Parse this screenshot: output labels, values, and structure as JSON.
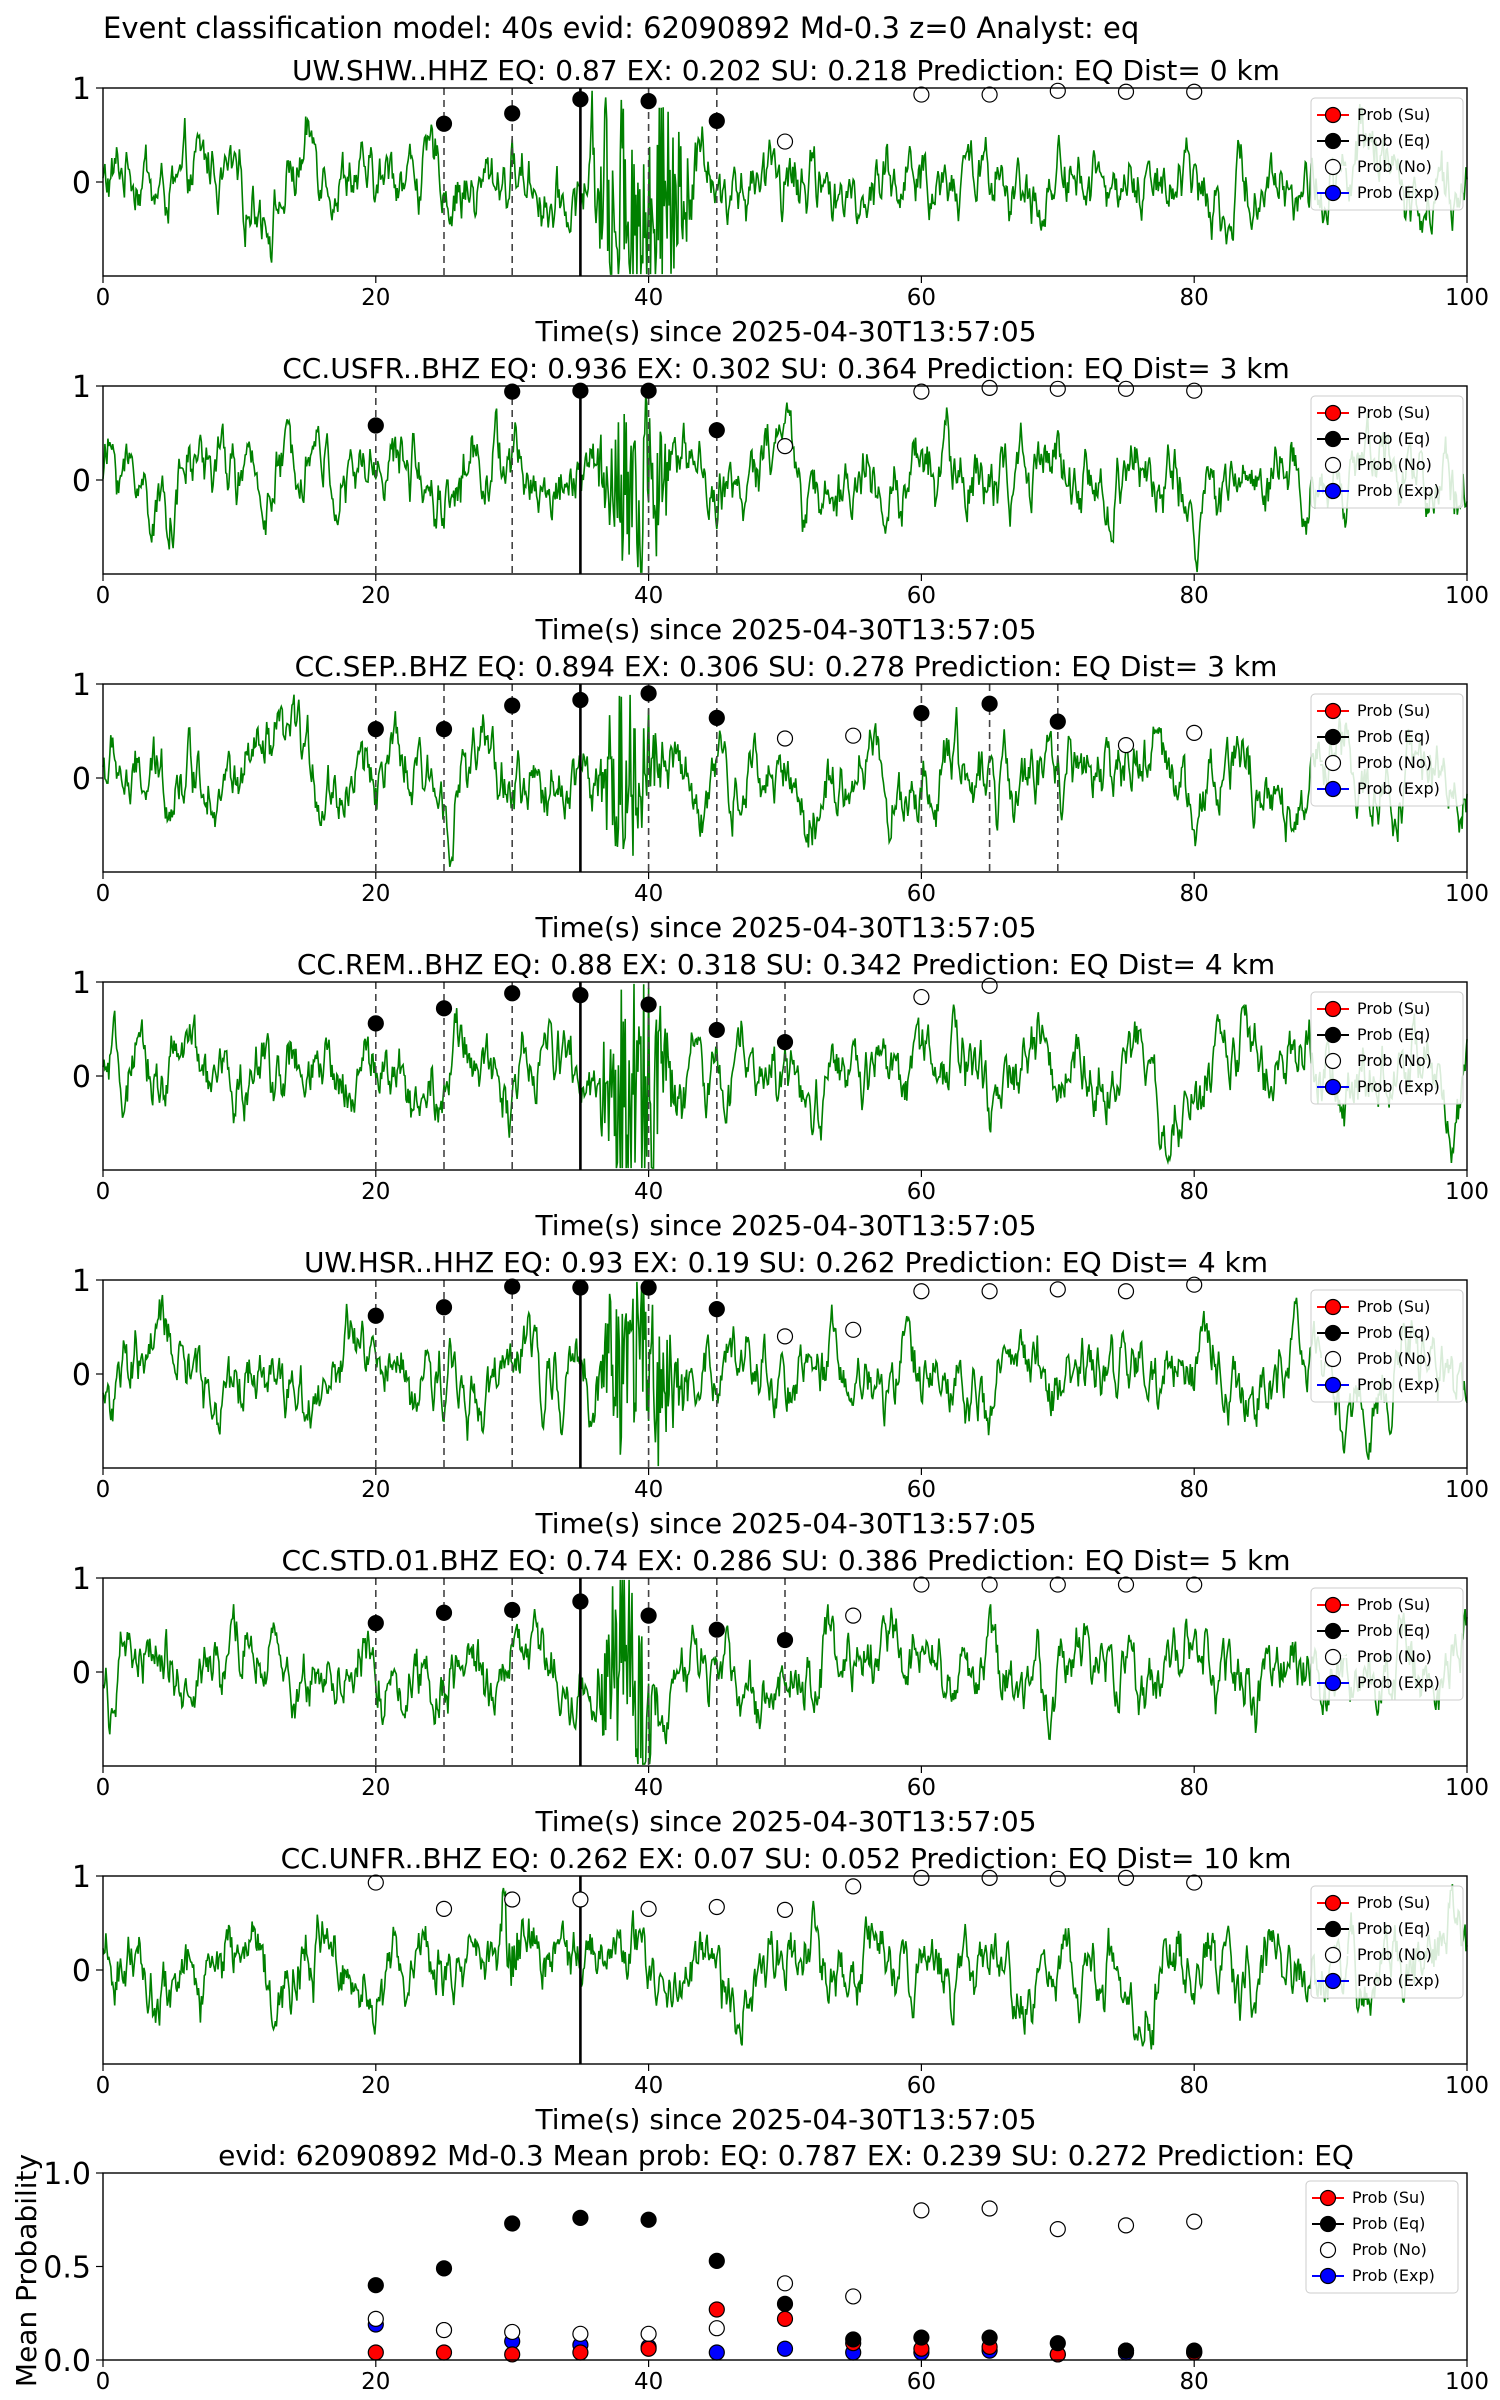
{
  "figure": {
    "suptitle": "Event classification model: 40s evid: 62090892 Md-0.3 z=0 Analyst: eq",
    "xlabel": "Time(s) since 2025-04-30T13:57:05",
    "legend": [
      "Prob (Su)",
      "Prob (Eq)",
      "Prob (No)",
      "Prob (Exp)"
    ]
  },
  "colors": {
    "waveform": "#008000",
    "su": "#ff0000",
    "eq": "#000000",
    "no": "#ffffff",
    "exp": "#0000ff"
  },
  "chart_data": [
    {
      "type": "line",
      "title": "UW.SHW..HHZ   EQ: 0.87  EX: 0.202  SU: 0.218   Prediction: EQ    Dist= 0 km",
      "xlim": [
        0,
        100
      ],
      "ylim": [
        -1,
        1
      ],
      "xticks": [
        "0",
        "20",
        "40",
        "60",
        "80",
        "100"
      ],
      "yticks": [
        "0",
        "1"
      ],
      "pick_time": 35,
      "dashed_lines": [
        25,
        30,
        40,
        45
      ],
      "eq_points": [
        [
          25,
          0.62
        ],
        [
          30,
          0.73
        ],
        [
          35,
          0.88
        ],
        [
          40,
          0.86
        ],
        [
          45,
          0.65
        ]
      ],
      "no_points": [
        [
          50,
          0.43
        ],
        [
          60,
          0.93
        ],
        [
          65,
          0.93
        ],
        [
          70,
          0.97
        ],
        [
          75,
          0.96
        ],
        [
          80,
          0.96
        ]
      ],
      "burst": [
        35,
        44,
        1.4
      ]
    },
    {
      "type": "line",
      "title": "CC.USFR..BHZ   EQ: 0.936  EX: 0.302  SU: 0.364   Prediction: EQ    Dist= 3 km",
      "xlim": [
        0,
        100
      ],
      "ylim": [
        -1,
        1
      ],
      "xticks": [
        "0",
        "20",
        "40",
        "60",
        "80",
        "100"
      ],
      "yticks": [
        "0",
        "1"
      ],
      "pick_time": 35,
      "dashed_lines": [
        20,
        30,
        40,
        45
      ],
      "eq_points": [
        [
          20,
          0.58
        ],
        [
          30,
          0.94
        ],
        [
          35,
          0.95
        ],
        [
          40,
          0.95
        ],
        [
          45,
          0.53
        ]
      ],
      "no_points": [
        [
          50,
          0.36
        ],
        [
          60,
          0.94
        ],
        [
          65,
          0.98
        ],
        [
          70,
          0.97
        ],
        [
          75,
          0.97
        ],
        [
          80,
          0.95
        ]
      ],
      "burst": [
        36,
        42,
        1.3
      ]
    },
    {
      "type": "line",
      "title": "CC.SEP..BHZ   EQ: 0.894  EX: 0.306  SU: 0.278   Prediction: EQ    Dist= 3 km",
      "xlim": [
        0,
        100
      ],
      "ylim": [
        -1,
        1
      ],
      "xticks": [
        "0",
        "20",
        "40",
        "60",
        "80",
        "100"
      ],
      "yticks": [
        "0",
        "1"
      ],
      "pick_time": 35,
      "dashed_lines": [
        20,
        25,
        30,
        40,
        45,
        60,
        65,
        70
      ],
      "eq_points": [
        [
          20,
          0.52
        ],
        [
          25,
          0.52
        ],
        [
          30,
          0.77
        ],
        [
          35,
          0.83
        ],
        [
          40,
          0.9
        ],
        [
          45,
          0.64
        ],
        [
          60,
          0.69
        ],
        [
          65,
          0.79
        ],
        [
          70,
          0.6
        ]
      ],
      "no_points": [
        [
          50,
          0.42
        ],
        [
          55,
          0.45
        ],
        [
          75,
          0.35
        ],
        [
          80,
          0.48
        ]
      ],
      "burst": [
        36,
        41,
        1.2
      ]
    },
    {
      "type": "line",
      "title": "CC.REM..BHZ   EQ: 0.88  EX: 0.318  SU: 0.342   Prediction: EQ    Dist= 4 km",
      "xlim": [
        0,
        100
      ],
      "ylim": [
        -1,
        1
      ],
      "xticks": [
        "0",
        "20",
        "40",
        "60",
        "80",
        "100"
      ],
      "yticks": [
        "0",
        "1"
      ],
      "pick_time": 35,
      "dashed_lines": [
        20,
        25,
        30,
        40,
        45,
        50
      ],
      "eq_points": [
        [
          20,
          0.56
        ],
        [
          25,
          0.72
        ],
        [
          30,
          0.88
        ],
        [
          35,
          0.86
        ],
        [
          40,
          0.76
        ],
        [
          45,
          0.49
        ],
        [
          50,
          0.36
        ]
      ],
      "no_points": [
        [
          60,
          0.84
        ],
        [
          65,
          0.96
        ]
      ],
      "burst": [
        36,
        42,
        1.4
      ]
    },
    {
      "type": "line",
      "title": "UW.HSR..HHZ   EQ: 0.93  EX: 0.19  SU: 0.262   Prediction: EQ    Dist= 4 km",
      "xlim": [
        0,
        100
      ],
      "ylim": [
        -1,
        1
      ],
      "xticks": [
        "0",
        "20",
        "40",
        "60",
        "80",
        "100"
      ],
      "yticks": [
        "0",
        "1"
      ],
      "pick_time": 35,
      "dashed_lines": [
        20,
        25,
        30,
        40,
        45
      ],
      "eq_points": [
        [
          20,
          0.62
        ],
        [
          25,
          0.71
        ],
        [
          30,
          0.93
        ],
        [
          35,
          0.92
        ],
        [
          40,
          0.92
        ],
        [
          45,
          0.69
        ]
      ],
      "no_points": [
        [
          50,
          0.4
        ],
        [
          55,
          0.47
        ],
        [
          60,
          0.88
        ],
        [
          65,
          0.88
        ],
        [
          70,
          0.9
        ],
        [
          75,
          0.88
        ],
        [
          80,
          0.95
        ]
      ],
      "burst": [
        36,
        43,
        1.1
      ]
    },
    {
      "type": "line",
      "title": "CC.STD.01.BHZ   EQ: 0.74  EX: 0.286  SU: 0.386   Prediction: EQ    Dist= 5 km",
      "xlim": [
        0,
        100
      ],
      "ylim": [
        -1,
        1
      ],
      "xticks": [
        "0",
        "20",
        "40",
        "60",
        "80",
        "100"
      ],
      "yticks": [
        "0",
        "1"
      ],
      "pick_time": 35,
      "dashed_lines": [
        20,
        25,
        30,
        40,
        45,
        50
      ],
      "eq_points": [
        [
          20,
          0.52
        ],
        [
          25,
          0.63
        ],
        [
          30,
          0.66
        ],
        [
          35,
          0.75
        ],
        [
          40,
          0.6
        ],
        [
          45,
          0.45
        ],
        [
          50,
          0.34
        ]
      ],
      "no_points": [
        [
          55,
          0.6
        ],
        [
          60,
          0.93
        ],
        [
          65,
          0.93
        ],
        [
          70,
          0.93
        ],
        [
          75,
          0.93
        ],
        [
          80,
          0.93
        ]
      ],
      "burst": [
        36,
        41,
        1.3
      ]
    },
    {
      "type": "line",
      "title": "CC.UNFR..BHZ   EQ: 0.262  EX: 0.07  SU: 0.052   Prediction: EQ    Dist= 10 km",
      "xlim": [
        0,
        100
      ],
      "ylim": [
        -1,
        1
      ],
      "xticks": [
        "0",
        "20",
        "40",
        "60",
        "80",
        "100"
      ],
      "yticks": [
        "0",
        "1"
      ],
      "pick_time": 35,
      "dashed_lines": [],
      "eq_points": [],
      "no_points": [
        [
          20,
          0.93
        ],
        [
          25,
          0.65
        ],
        [
          30,
          0.75
        ],
        [
          35,
          0.75
        ],
        [
          40,
          0.65
        ],
        [
          45,
          0.67
        ],
        [
          50,
          0.64
        ],
        [
          55,
          0.89
        ],
        [
          60,
          0.98
        ],
        [
          65,
          0.98
        ],
        [
          70,
          0.97
        ],
        [
          75,
          0.98
        ],
        [
          80,
          0.93
        ]
      ],
      "burst": [
        29,
        31,
        0.5
      ]
    },
    {
      "type": "scatter",
      "title": "evid: 62090892  Md-0.3   Mean prob:   EQ: 0.787  EX: 0.239  SU: 0.272   Prediction: EQ",
      "ylabel": "Mean Probability",
      "xlim": [
        0,
        100
      ],
      "ylim": [
        0,
        1
      ],
      "xticks": [
        "0",
        "20",
        "40",
        "60",
        "80",
        "100"
      ],
      "yticks": [
        "0.0",
        "0.5",
        "1.0"
      ],
      "x": [
        20,
        25,
        30,
        35,
        40,
        45,
        50,
        55,
        60,
        65,
        70,
        75,
        80
      ],
      "series": [
        {
          "name": "Prob (Exp)",
          "values": [
            0.19,
            0.16,
            0.1,
            0.08,
            0.07,
            0.04,
            0.06,
            0.04,
            0.04,
            0.05,
            0.03,
            0.04,
            0.04
          ]
        },
        {
          "name": "Prob (No)",
          "values": [
            0.22,
            0.16,
            0.15,
            0.14,
            0.14,
            0.17,
            0.41,
            0.34,
            0.8,
            0.81,
            0.7,
            0.72,
            0.74
          ]
        },
        {
          "name": "Prob (Su)",
          "values": [
            0.04,
            0.04,
            0.03,
            0.04,
            0.06,
            0.27,
            0.22,
            0.09,
            0.06,
            0.07,
            0.03,
            0.05,
            0.04
          ]
        },
        {
          "name": "Prob (Eq)",
          "values": [
            0.4,
            0.49,
            0.73,
            0.76,
            0.75,
            0.53,
            0.3,
            0.11,
            0.12,
            0.12,
            0.09,
            0.05,
            0.05
          ]
        }
      ]
    }
  ]
}
